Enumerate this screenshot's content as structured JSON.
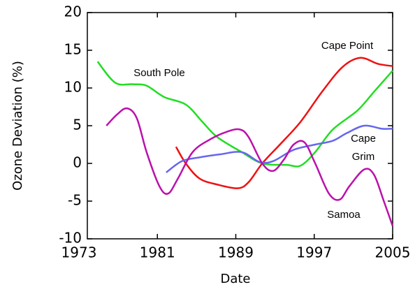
{
  "chart_data": {
    "type": "line",
    "x_label": "Date",
    "y_label": "Ozone Deviation (%)",
    "xlim": [
      1973,
      2005
    ],
    "xticks": [
      1973,
      1981,
      1989,
      1997,
      2005
    ],
    "ylim": [
      -10,
      20
    ],
    "yticks": [
      -10,
      -5,
      0,
      5,
      10,
      15,
      20
    ],
    "series": [
      {
        "name": "South Pole",
        "color": "#22dd22",
        "x": [
          1974.9,
          1976.7,
          1978.5,
          1979.9,
          1981.7,
          1983.9,
          1985.6,
          1987.1,
          1989.6,
          1991.7,
          1994.2,
          1995.6,
          1997.1,
          1998.9,
          2001.4,
          2003.1,
          2005
        ],
        "values": [
          13.5,
          10.7,
          10.5,
          10.3,
          8.8,
          7.8,
          5.5,
          3.5,
          1.5,
          0,
          -0.2,
          -0.3,
          1.5,
          4.5,
          7,
          9.5,
          12.3
        ]
      },
      {
        "name": "Cape Point",
        "color": "#ee1111",
        "x": [
          1982.9,
          1983.9,
          1985.3,
          1987.1,
          1989.2,
          1990.3,
          1991.7,
          1993.5,
          1995.6,
          1997.8,
          1999.9,
          2001.7,
          2003.5,
          2005
        ],
        "values": [
          2.2,
          0,
          -2,
          -2.8,
          -3.3,
          -2.5,
          0,
          2.5,
          5.5,
          9.5,
          12.8,
          14,
          13.2,
          12.9
        ]
      },
      {
        "name": "Cape Grim",
        "color": "#6666ee",
        "x": [
          1981.9,
          1983.5,
          1985.3,
          1987.4,
          1989.6,
          1991.4,
          1992.8,
          1994.9,
          1997.1,
          1998.9,
          2000.3,
          2002.1,
          2003.9,
          2005
        ],
        "values": [
          -1.2,
          0.3,
          0.8,
          1.2,
          1.5,
          0.2,
          0.3,
          1.8,
          2.5,
          3,
          4,
          5,
          4.6,
          4.6
        ]
      },
      {
        "name": "Samoa",
        "color": "#bb11aa",
        "x": [
          1975.8,
          1976.9,
          1977.9,
          1978.9,
          1979.9,
          1981.2,
          1982.1,
          1983.1,
          1984.6,
          1986.4,
          1988.1,
          1989.4,
          1990.3,
          1991.7,
          1992.8,
          1993.9,
          1994.9,
          1996,
          1997.1,
          1998.5,
          1999.6,
          2000.6,
          2002.1,
          2003.1,
          2004.1,
          2005
        ],
        "values": [
          5,
          6.5,
          7.3,
          6,
          1.5,
          -3,
          -4,
          -2,
          1.5,
          3.2,
          4.2,
          4.5,
          3.5,
          0,
          -1,
          0.5,
          2.5,
          2.8,
          0,
          -4,
          -4.8,
          -3,
          -0.8,
          -1.5,
          -5,
          -8.3
        ]
      }
    ]
  }
}
